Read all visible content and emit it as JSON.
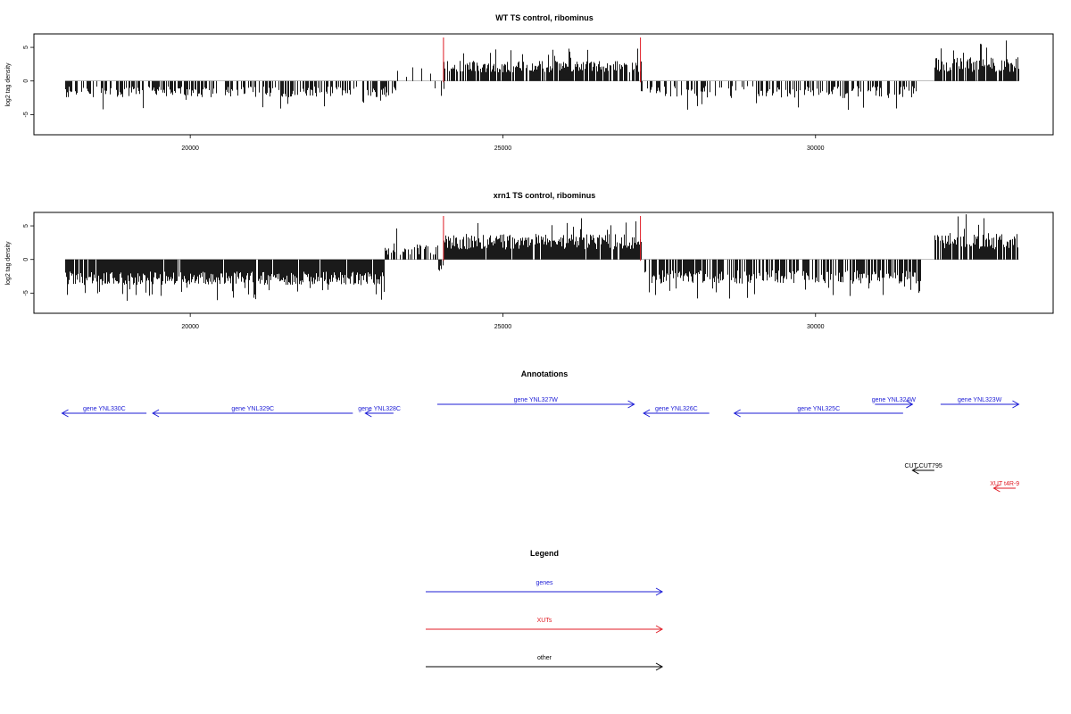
{
  "chart_data": [
    {
      "type": "bar",
      "title": "WT TS control, ribominus",
      "ylabel": "log2 tag density",
      "xlim": [
        17500,
        33800
      ],
      "ylim": [
        -8,
        7
      ],
      "x_ticks": [
        20000,
        25000,
        30000
      ],
      "y_ticks": [
        -5,
        0,
        5
      ],
      "markers": [
        24050,
        27200
      ],
      "marker_color": "#e01b24",
      "bar_color": "#000000",
      "segments": [
        {
          "x0": 18000,
          "x1": 23300,
          "sign": -1,
          "base": 1.3,
          "amp": 1.6,
          "density": 0.55
        },
        {
          "x0": 23300,
          "x1": 23900,
          "sign": 1,
          "base": 0.8,
          "amp": 2.0,
          "density": 0.15
        },
        {
          "x0": 23900,
          "x1": 24050,
          "sign": -1,
          "base": 0.9,
          "amp": 1.2,
          "density": 0.4
        },
        {
          "x0": 24050,
          "x1": 27200,
          "sign": 1,
          "base": 1.8,
          "amp": 1.7,
          "density": 0.85
        },
        {
          "x0": 27200,
          "x1": 31600,
          "sign": -1,
          "base": 1.3,
          "amp": 1.8,
          "density": 0.45
        },
        {
          "x0": 31900,
          "x1": 33250,
          "sign": 1,
          "base": 2.0,
          "amp": 2.2,
          "density": 0.8
        }
      ]
    },
    {
      "type": "bar",
      "title": "xrn1 TS control, ribominus",
      "ylabel": "log2 tag density",
      "xlim": [
        17500,
        33800
      ],
      "ylim": [
        -8,
        7
      ],
      "x_ticks": [
        20000,
        25000,
        30000
      ],
      "y_ticks": [
        -5,
        0,
        5
      ],
      "markers": [
        24050,
        27200
      ],
      "marker_color": "#e01b24",
      "bar_color": "#000000",
      "segments": [
        {
          "x0": 18000,
          "x1": 23100,
          "sign": -1,
          "base": 2.4,
          "amp": 2.0,
          "density": 0.95
        },
        {
          "x0": 23100,
          "x1": 23950,
          "sign": 1,
          "base": 1.2,
          "amp": 1.8,
          "density": 0.5
        },
        {
          "x0": 23950,
          "x1": 24050,
          "sign": -1,
          "base": 1.0,
          "amp": 1.0,
          "density": 0.5
        },
        {
          "x0": 24050,
          "x1": 27200,
          "sign": 1,
          "base": 2.2,
          "amp": 2.3,
          "density": 0.95
        },
        {
          "x0": 27200,
          "x1": 31700,
          "sign": -1,
          "base": 2.2,
          "amp": 2.0,
          "density": 0.7
        },
        {
          "x0": 31900,
          "x1": 33250,
          "sign": 1,
          "base": 2.2,
          "amp": 2.5,
          "density": 0.85
        }
      ]
    }
  ],
  "annotations": {
    "title": "Annotations",
    "features": [
      {
        "label": "gene YNL330C",
        "start": 17950,
        "end": 19300,
        "strand": "-",
        "row": 1,
        "kind": "gene"
      },
      {
        "label": "gene YNL329C",
        "start": 19400,
        "end": 22600,
        "strand": "-",
        "row": 1,
        "kind": "gene"
      },
      {
        "label": "gene YNL328C",
        "start": 22800,
        "end": 23250,
        "strand": "-",
        "row": 1,
        "kind": "gene"
      },
      {
        "label": "gene YNL327W",
        "start": 23950,
        "end": 27100,
        "strand": "+",
        "row": 0,
        "kind": "gene"
      },
      {
        "label": "gene YNL326C",
        "start": 27250,
        "end": 28300,
        "strand": "-",
        "row": 1,
        "kind": "gene"
      },
      {
        "label": "gene YNL325C",
        "start": 28700,
        "end": 31400,
        "strand": "-",
        "row": 1,
        "kind": "gene"
      },
      {
        "label": "gene YNL324W",
        "start": 30950,
        "end": 31550,
        "strand": "+",
        "row": 0,
        "kind": "gene"
      },
      {
        "label": "gene YNL323W",
        "start": 32000,
        "end": 33250,
        "strand": "+",
        "row": 0,
        "kind": "gene"
      },
      {
        "label": "CUT CUT795",
        "start": 31550,
        "end": 31900,
        "strand": "-",
        "row": 2,
        "kind": "other"
      },
      {
        "label": "XUT t4R-9",
        "start": 32850,
        "end": 33200,
        "strand": "-",
        "row": 3,
        "kind": "xut"
      }
    ]
  },
  "legend": {
    "title": "Legend",
    "items": [
      {
        "label": "genes",
        "color": "#1c1cd6"
      },
      {
        "label": "XUTs",
        "color": "#e01b24"
      },
      {
        "label": "other",
        "color": "#000000"
      }
    ]
  },
  "colors": {
    "gene": "#1c1cd6",
    "xut": "#e01b24",
    "other": "#000000"
  }
}
